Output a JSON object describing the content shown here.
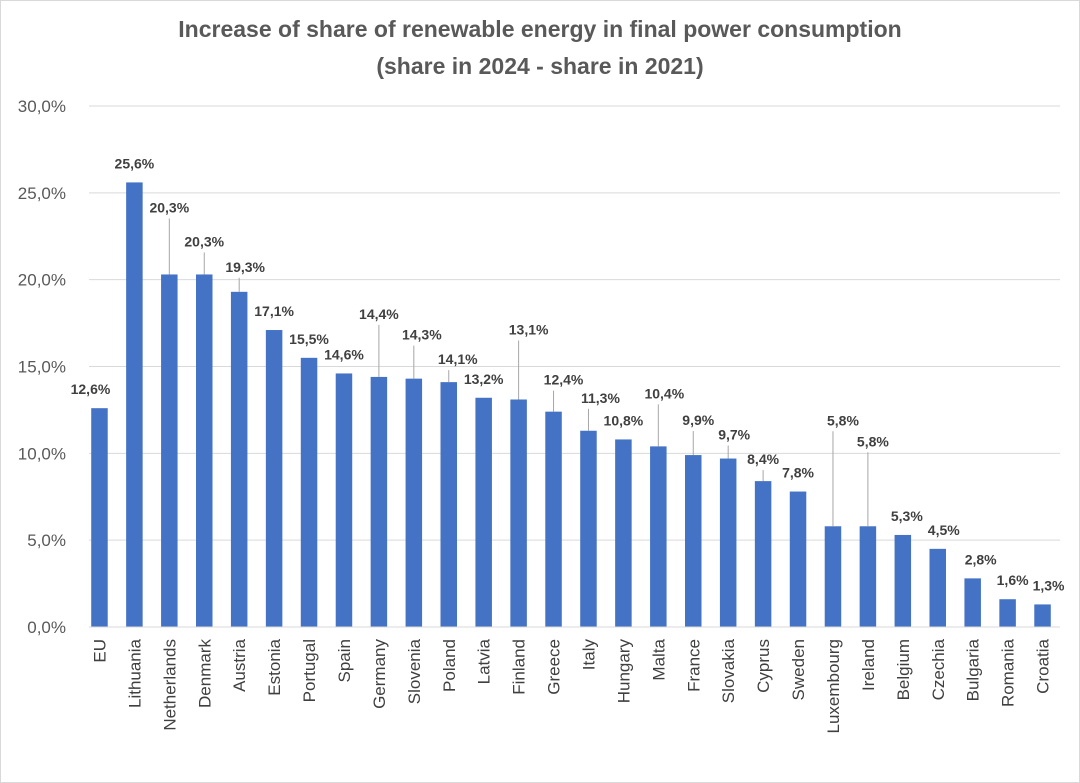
{
  "chart_data": {
    "type": "bar",
    "title": "Increase of share of renewable energy  in final power consumption",
    "subtitle": "(share in 2024 - share in 2021)",
    "xlabel": "",
    "ylabel": "",
    "ylim": [
      0,
      30
    ],
    "yticks": [
      "0,0%",
      "5,0%",
      "10,0%",
      "15,0%",
      "20,0%",
      "25,0%",
      "30,0%"
    ],
    "ytick_values": [
      0,
      5,
      10,
      15,
      20,
      25,
      30
    ],
    "grid": true,
    "legend": "none",
    "bar_color": "#4472c4",
    "categories": [
      "EU",
      "Lithuania",
      "Netherlands",
      "Denmark",
      "Austria",
      "Estonia",
      "Portugal",
      "Spain",
      "Germany",
      "Slovenia",
      "Poland",
      "Latvia",
      "Finland",
      "Greece",
      "Italy",
      "Hungary",
      "Malta",
      "France",
      "Slovakia",
      "Cyprus",
      "Sweden",
      "Luxembourg",
      "Ireland",
      "Belgium",
      "Czechia",
      "Bulgaria",
      "Romania",
      "Croatia"
    ],
    "values": [
      12.6,
      25.6,
      20.3,
      20.3,
      19.3,
      17.1,
      15.5,
      14.6,
      14.4,
      14.3,
      14.1,
      13.2,
      13.1,
      12.4,
      11.3,
      10.8,
      10.4,
      9.9,
      9.7,
      8.4,
      7.8,
      5.8,
      5.8,
      5.3,
      4.5,
      2.8,
      1.6,
      1.3
    ],
    "data_labels": [
      "12,6%",
      "25,6%",
      "20,3%",
      "20,3%",
      "19,3%",
      "17,1%",
      "15,5%",
      "14,6%",
      "14,4%",
      "14,3%",
      "14,1%",
      "13,2%",
      "13,1%",
      "12,4%",
      "11,3%",
      "10,8%",
      "10,4%",
      "9,9%",
      "9,7%",
      "8,4%",
      "7,8%",
      "5,8%",
      "5,8%",
      "5,3%",
      "4,5%",
      "2,8%",
      "1,6%",
      "1,3%"
    ]
  }
}
